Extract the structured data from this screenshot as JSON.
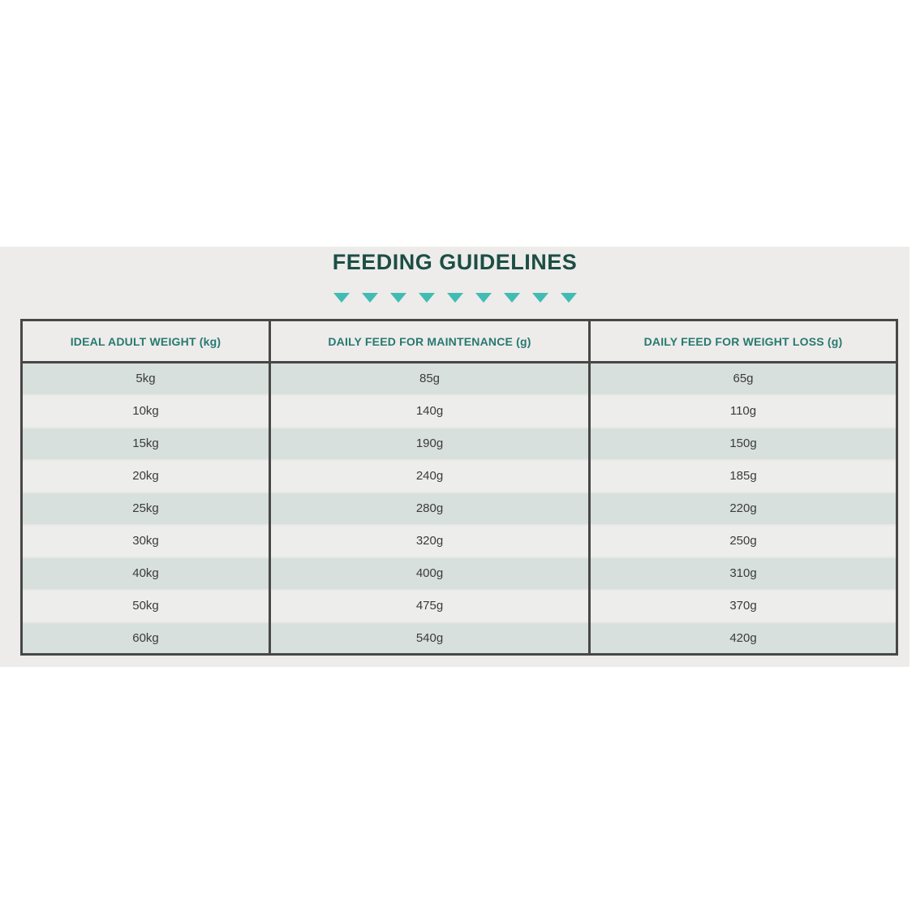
{
  "section": {
    "title": "FEEDING GUIDELINES",
    "title_color": "#1c4e44",
    "background_color": "#edeceb",
    "divider": {
      "triangle_icon_count": 9,
      "triangle_color": "#41bcb3"
    }
  },
  "table": {
    "headers": [
      "IDEAL ADULT WEIGHT (kg)",
      "DAILY FEED FOR MAINTENANCE (g)",
      "DAILY FEED FOR WEIGHT LOSS (g)"
    ],
    "rows": [
      [
        "5kg",
        "85g",
        "65g"
      ],
      [
        "10kg",
        "140g",
        "110g"
      ],
      [
        "15kg",
        "190g",
        "150g"
      ],
      [
        "20kg",
        "240g",
        "185g"
      ],
      [
        "25kg",
        "280g",
        "220g"
      ],
      [
        "30kg",
        "320g",
        "250g"
      ],
      [
        "40kg",
        "400g",
        "310g"
      ],
      [
        "50kg",
        "475g",
        "370g"
      ],
      [
        "60kg",
        "540g",
        "420g"
      ]
    ],
    "style": {
      "header_text_color": "#27796f",
      "border_color": "#474747",
      "row_alt_color": "#d8e0dd",
      "row_color": "#ededeb",
      "cell_text_color": "#3b3b3b"
    }
  }
}
